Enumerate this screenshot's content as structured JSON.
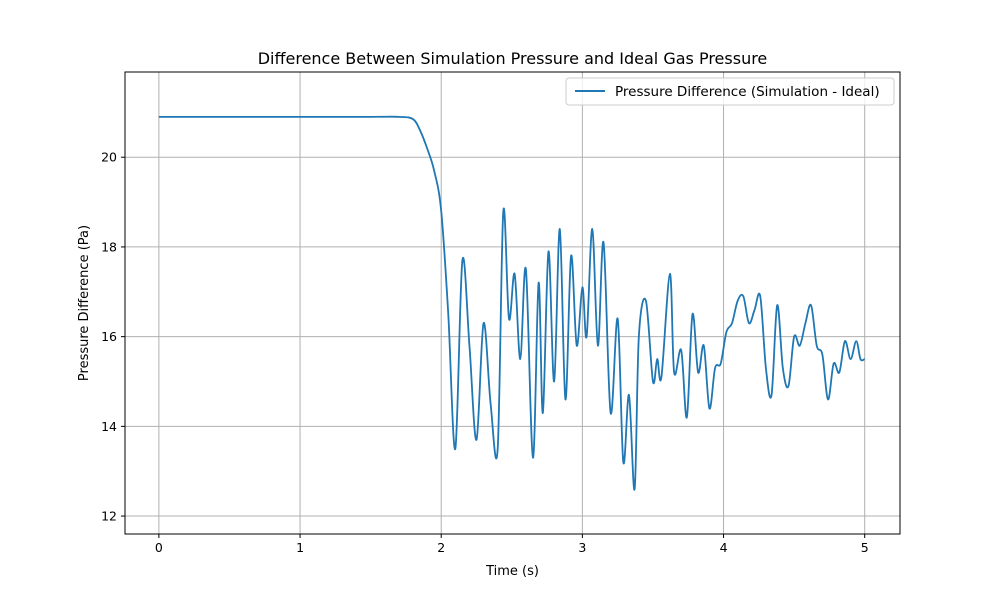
{
  "chart_data": {
    "type": "line",
    "title": "Difference Between Simulation Pressure and Ideal Gas Pressure",
    "xlabel": "Time (s)",
    "ylabel": "Pressure Difference (Pa)",
    "xlim": [
      -0.24,
      5.25
    ],
    "ylim": [
      11.6,
      21.9
    ],
    "xticks": [
      0,
      1,
      2,
      3,
      4,
      5
    ],
    "yticks": [
      12,
      14,
      16,
      18,
      20
    ],
    "xtick_labels": [
      "0",
      "1",
      "2",
      "3",
      "4",
      "5"
    ],
    "ytick_labels": [
      "12",
      "14",
      "16",
      "18",
      "20"
    ],
    "grid": true,
    "legend_position": "top-right",
    "colors": {
      "series": "#1f77b4",
      "grid": "#b0b0b0",
      "axis": "#000000"
    },
    "series": [
      {
        "name": "Pressure Difference (Simulation - Ideal)",
        "x": [
          0,
          0.5,
          1.0,
          1.5,
          1.7,
          1.8,
          1.85,
          1.9,
          1.95,
          2.0,
          2.05,
          2.1,
          2.15,
          2.2,
          2.25,
          2.3,
          2.35,
          2.4,
          2.44,
          2.48,
          2.52,
          2.56,
          2.6,
          2.65,
          2.69,
          2.72,
          2.76,
          2.8,
          2.84,
          2.88,
          2.92,
          2.96,
          3.0,
          3.03,
          3.07,
          3.11,
          3.15,
          3.2,
          3.25,
          3.29,
          3.33,
          3.37,
          3.4,
          3.45,
          3.5,
          3.53,
          3.56,
          3.62,
          3.65,
          3.7,
          3.74,
          3.78,
          3.82,
          3.86,
          3.9,
          3.94,
          3.98,
          4.02,
          4.06,
          4.1,
          4.14,
          4.18,
          4.22,
          4.26,
          4.3,
          4.34,
          4.38,
          4.42,
          4.46,
          4.5,
          4.54,
          4.58,
          4.62,
          4.66,
          4.7,
          4.74,
          4.78,
          4.82,
          4.86,
          4.9,
          4.94,
          4.97,
          5.0
        ],
        "y": [
          20.9,
          20.9,
          20.9,
          20.9,
          20.9,
          20.85,
          20.6,
          20.2,
          19.7,
          18.8,
          16.5,
          13.5,
          17.7,
          15.8,
          13.7,
          16.3,
          14.5,
          13.5,
          18.8,
          16.4,
          17.4,
          15.5,
          17.5,
          13.3,
          17.2,
          14.3,
          17.9,
          15.0,
          18.4,
          14.6,
          17.8,
          15.8,
          17.1,
          16.0,
          18.4,
          15.8,
          18.1,
          14.3,
          16.4,
          13.2,
          14.7,
          12.6,
          16.0,
          16.8,
          15.0,
          15.5,
          15.1,
          17.4,
          15.2,
          15.7,
          14.2,
          16.5,
          15.2,
          15.8,
          14.4,
          15.3,
          15.4,
          16.1,
          16.3,
          16.8,
          16.9,
          16.3,
          16.6,
          16.9,
          15.3,
          14.7,
          16.7,
          15.3,
          14.9,
          16.0,
          15.8,
          16.3,
          16.7,
          15.8,
          15.6,
          14.6,
          15.4,
          15.2,
          15.9,
          15.5,
          15.9,
          15.5,
          15.5
        ]
      }
    ]
  }
}
